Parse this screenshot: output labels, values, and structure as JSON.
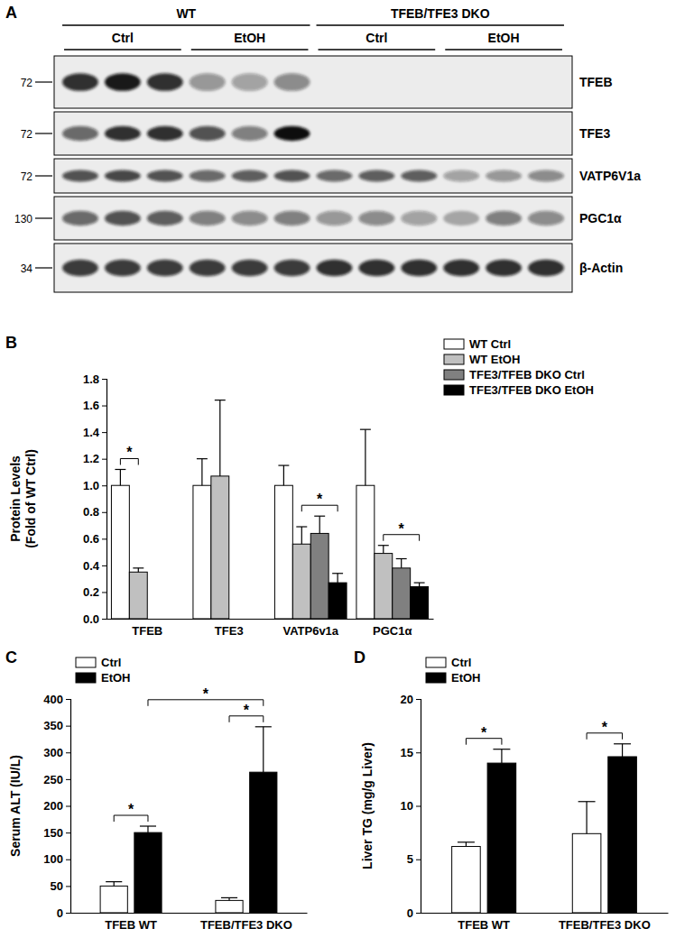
{
  "blot": {
    "panel_label": "A",
    "groups": [
      {
        "label": "WT",
        "conditions": [
          "Ctrl",
          "EtOH"
        ]
      },
      {
        "label": "TFEB/TFE3 DKO",
        "conditions": [
          "Ctrl",
          "EtOH"
        ]
      }
    ],
    "rows": [
      {
        "label": "TFEB",
        "mw": 72,
        "intensity": [
          0.85,
          0.95,
          0.85,
          0.4,
          0.35,
          0.45,
          0,
          0,
          0,
          0,
          0,
          0
        ]
      },
      {
        "label": "TFE3",
        "mw": 72,
        "intensity": [
          0.6,
          0.85,
          0.85,
          0.7,
          0.5,
          1.0,
          0,
          0,
          0,
          0,
          0,
          0
        ]
      },
      {
        "label": "VATP6V1a",
        "mw": 72,
        "intensity": [
          0.7,
          0.75,
          0.7,
          0.6,
          0.65,
          0.7,
          0.6,
          0.65,
          0.65,
          0.35,
          0.4,
          0.45
        ]
      },
      {
        "label": "PGC1α",
        "mw": 130,
        "intensity": [
          0.6,
          0.7,
          0.65,
          0.5,
          0.45,
          0.5,
          0.4,
          0.45,
          0.35,
          0.3,
          0.5,
          0.45
        ]
      },
      {
        "label": "β-Actin",
        "mw": 34,
        "intensity": [
          0.8,
          0.8,
          0.8,
          0.8,
          0.8,
          0.8,
          0.85,
          0.85,
          0.85,
          0.85,
          0.85,
          0.85
        ]
      }
    ]
  },
  "chart_data": [
    {
      "type": "bar",
      "panel_label": "B",
      "y_label": [
        "Protein Levels",
        "(Fold of WT Ctrl)"
      ],
      "categories": [
        "TFEB",
        "TFE3",
        "VATP6v1a",
        "PGC1α"
      ],
      "series": [
        {
          "name": "WT Ctrl",
          "color": "#ffffff",
          "values": [
            1.0,
            1.0,
            1.0,
            1.0
          ],
          "errors": [
            0.12,
            0.2,
            0.15,
            0.42
          ]
        },
        {
          "name": "WT EtOH",
          "color": "#c0c0c0",
          "values": [
            0.35,
            1.07,
            0.56,
            0.49
          ],
          "errors": [
            0.03,
            0.57,
            0.13,
            0.06
          ]
        },
        {
          "name": "TFE3/TFEB DKO Ctrl",
          "color": "#808080",
          "values": [
            null,
            null,
            0.64,
            0.38
          ],
          "errors": [
            null,
            null,
            0.13,
            0.07
          ]
        },
        {
          "name": "TFE3/TFEB DKO EtOH",
          "color": "#000000",
          "values": [
            null,
            null,
            0.27,
            0.24
          ],
          "errors": [
            null,
            null,
            0.07,
            0.03
          ]
        }
      ],
      "ylim": [
        0,
        1.8
      ],
      "yticks": [
        {
          "value": 0,
          "label": "0.0"
        },
        0.2,
        0.4,
        0.6,
        0.8,
        {
          "value": 1,
          "label": "1.0"
        },
        1.2,
        1.4,
        1.6,
        1.8
      ],
      "legend": "top-right",
      "significance": [
        {
          "label": "*",
          "from": [
            0,
            0
          ],
          "to": [
            0,
            1
          ]
        },
        {
          "label": "*",
          "from": [
            2,
            1
          ],
          "to": [
            2,
            3
          ]
        },
        {
          "label": "*",
          "from": [
            3,
            1
          ],
          "to": [
            3,
            3
          ]
        }
      ]
    },
    {
      "type": "bar",
      "panel_label": "C",
      "y_label": [
        "Serum ALT (IU/L)"
      ],
      "categories": [
        "TFEB WT",
        "TFEB/TFE3 DKO"
      ],
      "series": [
        {
          "name": "Ctrl",
          "color": "#ffffff",
          "values": [
            50,
            23
          ],
          "errors": [
            8,
            5
          ]
        },
        {
          "name": "EtOH",
          "color": "#000000",
          "values": [
            150,
            263
          ],
          "errors": [
            12,
            85
          ]
        }
      ],
      "ylim": [
        0,
        400
      ],
      "yticks": [
        0,
        50,
        100,
        150,
        200,
        250,
        300,
        350,
        400
      ],
      "legend": "top-left",
      "significance": [
        {
          "label": "*",
          "from": [
            0,
            0
          ],
          "to": [
            0,
            1
          ]
        },
        {
          "label": "*",
          "from": [
            1,
            0
          ],
          "to": [
            1,
            1
          ]
        },
        {
          "label": "*",
          "from": [
            0,
            1
          ],
          "to": [
            1,
            1
          ]
        }
      ]
    },
    {
      "type": "bar",
      "panel_label": "D",
      "y_label": [
        "Liver TG (mg/g Liver)"
      ],
      "categories": [
        "TFEB WT",
        "TFEB/TFE3 DKO"
      ],
      "series": [
        {
          "name": "Ctrl",
          "color": "#ffffff",
          "values": [
            6.2,
            7.4
          ],
          "errors": [
            0.4,
            3.0
          ]
        },
        {
          "name": "EtOH",
          "color": "#000000",
          "values": [
            14.0,
            14.6
          ],
          "errors": [
            1.3,
            1.2
          ]
        }
      ],
      "ylim": [
        0,
        20
      ],
      "yticks": [
        0,
        5,
        10,
        15,
        20
      ],
      "legend": "top-left",
      "significance": [
        {
          "label": "*",
          "from": [
            0,
            0
          ],
          "to": [
            0,
            1
          ]
        },
        {
          "label": "*",
          "from": [
            1,
            0
          ],
          "to": [
            1,
            1
          ]
        }
      ]
    }
  ]
}
